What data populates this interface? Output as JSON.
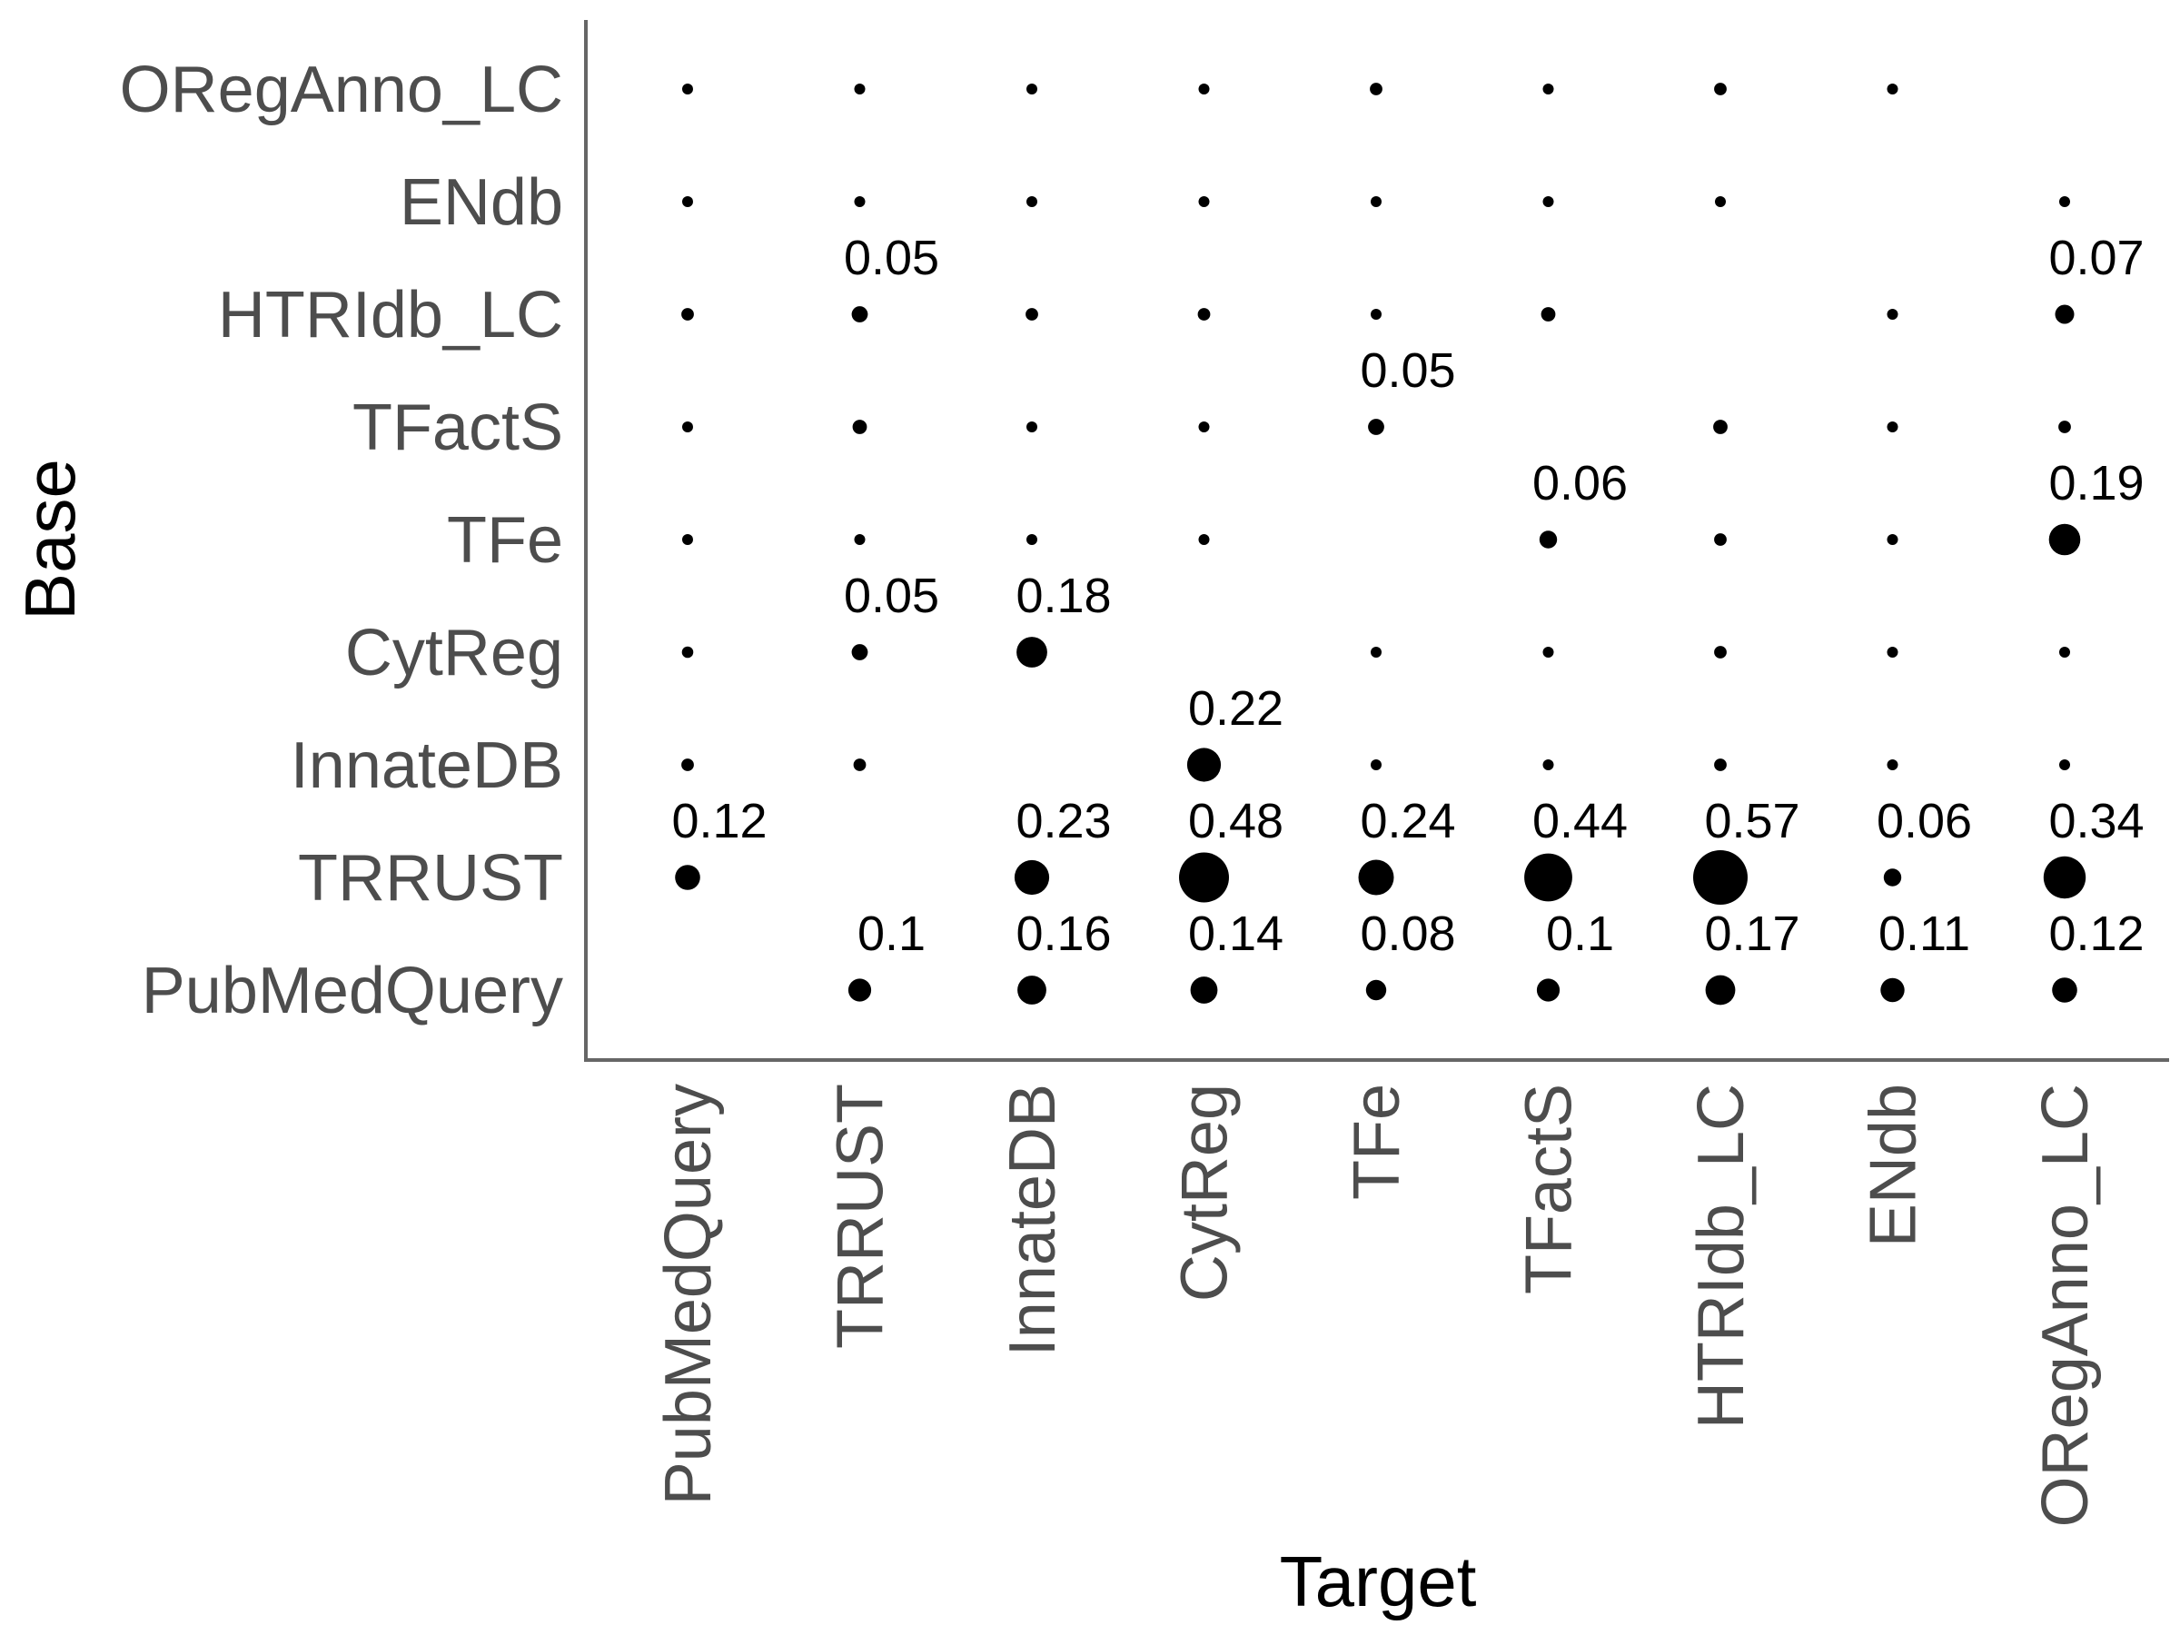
{
  "chart_data": {
    "type": "scatter",
    "xlabel": "Target",
    "ylabel": "Base",
    "x_categories": [
      "PubMedQuery",
      "TRRUST",
      "InnateDB",
      "CytReg",
      "TFe",
      "TFactS",
      "HTRIdb_LC",
      "ENdb",
      "ORegAnno_LC"
    ],
    "y_categories": [
      "PubMedQuery",
      "TRRUST",
      "InnateDB",
      "CytReg",
      "TFe",
      "TFactS",
      "HTRIdb_LC",
      "ENdb",
      "ORegAnno_LC"
    ],
    "size_encodes": "value",
    "grid": false,
    "legend": "none",
    "colors": {
      "point": "#000000",
      "axis": "#666666",
      "tick_text": "#4d4d4d"
    },
    "points": [
      {
        "base": "PubMedQuery",
        "target": "TRRUST",
        "value": 0.1,
        "label": "0.1"
      },
      {
        "base": "PubMedQuery",
        "target": "InnateDB",
        "value": 0.16,
        "label": "0.16"
      },
      {
        "base": "PubMedQuery",
        "target": "CytReg",
        "value": 0.14,
        "label": "0.14"
      },
      {
        "base": "PubMedQuery",
        "target": "TFe",
        "value": 0.08,
        "label": "0.08"
      },
      {
        "base": "PubMedQuery",
        "target": "TFactS",
        "value": 0.1,
        "label": "0.1"
      },
      {
        "base": "PubMedQuery",
        "target": "HTRIdb_LC",
        "value": 0.17,
        "label": "0.17"
      },
      {
        "base": "PubMedQuery",
        "target": "ENdb",
        "value": 0.11,
        "label": "0.11"
      },
      {
        "base": "PubMedQuery",
        "target": "ORegAnno_LC",
        "value": 0.12,
        "label": "0.12"
      },
      {
        "base": "TRRUST",
        "target": "PubMedQuery",
        "value": 0.12,
        "label": "0.12"
      },
      {
        "base": "TRRUST",
        "target": "InnateDB",
        "value": 0.23,
        "label": "0.23"
      },
      {
        "base": "TRRUST",
        "target": "CytReg",
        "value": 0.48,
        "label": "0.48"
      },
      {
        "base": "TRRUST",
        "target": "TFe",
        "value": 0.24,
        "label": "0.24"
      },
      {
        "base": "TRRUST",
        "target": "TFactS",
        "value": 0.44,
        "label": "0.44"
      },
      {
        "base": "TRRUST",
        "target": "HTRIdb_LC",
        "value": 0.57,
        "label": "0.57"
      },
      {
        "base": "TRRUST",
        "target": "ENdb",
        "value": 0.06,
        "label": "0.06"
      },
      {
        "base": "TRRUST",
        "target": "ORegAnno_LC",
        "value": 0.34,
        "label": "0.34"
      },
      {
        "base": "InnateDB",
        "target": "PubMedQuery",
        "value": 0.03,
        "label": ""
      },
      {
        "base": "InnateDB",
        "target": "TRRUST",
        "value": 0.03,
        "label": ""
      },
      {
        "base": "InnateDB",
        "target": "CytReg",
        "value": 0.22,
        "label": "0.22"
      },
      {
        "base": "InnateDB",
        "target": "TFe",
        "value": 0.02,
        "label": ""
      },
      {
        "base": "InnateDB",
        "target": "TFactS",
        "value": 0.02,
        "label": ""
      },
      {
        "base": "InnateDB",
        "target": "HTRIdb_LC",
        "value": 0.03,
        "label": ""
      },
      {
        "base": "InnateDB",
        "target": "ENdb",
        "value": 0.015,
        "label": ""
      },
      {
        "base": "InnateDB",
        "target": "ORegAnno_LC",
        "value": 0.02,
        "label": ""
      },
      {
        "base": "CytReg",
        "target": "PubMedQuery",
        "value": 0.025,
        "label": ""
      },
      {
        "base": "CytReg",
        "target": "TRRUST",
        "value": 0.05,
        "label": "0.05"
      },
      {
        "base": "CytReg",
        "target": "InnateDB",
        "value": 0.18,
        "label": "0.18"
      },
      {
        "base": "CytReg",
        "target": "TFe",
        "value": 0.015,
        "label": ""
      },
      {
        "base": "CytReg",
        "target": "TFactS",
        "value": 0.015,
        "label": ""
      },
      {
        "base": "CytReg",
        "target": "HTRIdb_LC",
        "value": 0.03,
        "label": ""
      },
      {
        "base": "CytReg",
        "target": "ENdb",
        "value": 0.005,
        "label": ""
      },
      {
        "base": "CytReg",
        "target": "ORegAnno_LC",
        "value": 0.01,
        "label": ""
      },
      {
        "base": "TFe",
        "target": "PubMedQuery",
        "value": 0.015,
        "label": ""
      },
      {
        "base": "TFe",
        "target": "TRRUST",
        "value": 0.02,
        "label": ""
      },
      {
        "base": "TFe",
        "target": "InnateDB",
        "value": 0.02,
        "label": ""
      },
      {
        "base": "TFe",
        "target": "CytReg",
        "value": 0.015,
        "label": ""
      },
      {
        "base": "TFe",
        "target": "TFactS",
        "value": 0.06,
        "label": "0.06"
      },
      {
        "base": "TFe",
        "target": "HTRIdb_LC",
        "value": 0.03,
        "label": ""
      },
      {
        "base": "TFe",
        "target": "ENdb",
        "value": 0.005,
        "label": ""
      },
      {
        "base": "TFe",
        "target": "ORegAnno_LC",
        "value": 0.19,
        "label": "0.19"
      },
      {
        "base": "TFactS",
        "target": "PubMedQuery",
        "value": 0.015,
        "label": ""
      },
      {
        "base": "TFactS",
        "target": "TRRUST",
        "value": 0.04,
        "label": ""
      },
      {
        "base": "TFactS",
        "target": "InnateDB",
        "value": 0.015,
        "label": ""
      },
      {
        "base": "TFactS",
        "target": "CytReg",
        "value": 0.015,
        "label": ""
      },
      {
        "base": "TFactS",
        "target": "TFe",
        "value": 0.05,
        "label": "0.05"
      },
      {
        "base": "TFactS",
        "target": "HTRIdb_LC",
        "value": 0.04,
        "label": ""
      },
      {
        "base": "TFactS",
        "target": "ENdb",
        "value": 0.005,
        "label": ""
      },
      {
        "base": "TFactS",
        "target": "ORegAnno_LC",
        "value": 0.03,
        "label": ""
      },
      {
        "base": "HTRIdb_LC",
        "target": "PubMedQuery",
        "value": 0.03,
        "label": ""
      },
      {
        "base": "HTRIdb_LC",
        "target": "TRRUST",
        "value": 0.05,
        "label": "0.05"
      },
      {
        "base": "HTRIdb_LC",
        "target": "InnateDB",
        "value": 0.03,
        "label": ""
      },
      {
        "base": "HTRIdb_LC",
        "target": "CytReg",
        "value": 0.03,
        "label": ""
      },
      {
        "base": "HTRIdb_LC",
        "target": "TFe",
        "value": 0.02,
        "label": ""
      },
      {
        "base": "HTRIdb_LC",
        "target": "TFactS",
        "value": 0.04,
        "label": ""
      },
      {
        "base": "HTRIdb_LC",
        "target": "ENdb",
        "value": 0.015,
        "label": ""
      },
      {
        "base": "HTRIdb_LC",
        "target": "ORegAnno_LC",
        "value": 0.07,
        "label": "0.07"
      },
      {
        "base": "ENdb",
        "target": "PubMedQuery",
        "value": 0.004,
        "label": ""
      },
      {
        "base": "ENdb",
        "target": "TRRUST",
        "value": 0.004,
        "label": ""
      },
      {
        "base": "ENdb",
        "target": "InnateDB",
        "value": 0.004,
        "label": ""
      },
      {
        "base": "ENdb",
        "target": "CytReg",
        "value": 0.004,
        "label": ""
      },
      {
        "base": "ENdb",
        "target": "TFe",
        "value": 0.004,
        "label": ""
      },
      {
        "base": "ENdb",
        "target": "TFactS",
        "value": 0.004,
        "label": ""
      },
      {
        "base": "ENdb",
        "target": "HTRIdb_LC",
        "value": 0.004,
        "label": ""
      },
      {
        "base": "ENdb",
        "target": "ORegAnno_LC",
        "value": 0.004,
        "label": ""
      },
      {
        "base": "ORegAnno_LC",
        "target": "PubMedQuery",
        "value": 0.004,
        "label": ""
      },
      {
        "base": "ORegAnno_LC",
        "target": "TRRUST",
        "value": 0.004,
        "label": ""
      },
      {
        "base": "ORegAnno_LC",
        "target": "InnateDB",
        "value": 0.004,
        "label": ""
      },
      {
        "base": "ORegAnno_LC",
        "target": "CytReg",
        "value": 0.004,
        "label": ""
      },
      {
        "base": "ORegAnno_LC",
        "target": "TFe",
        "value": 0.03,
        "label": ""
      },
      {
        "base": "ORegAnno_LC",
        "target": "TFactS",
        "value": 0.004,
        "label": ""
      },
      {
        "base": "ORegAnno_LC",
        "target": "HTRIdb_LC",
        "value": 0.03,
        "label": ""
      },
      {
        "base": "ORegAnno_LC",
        "target": "ENdb",
        "value": 0.004,
        "label": ""
      }
    ]
  }
}
